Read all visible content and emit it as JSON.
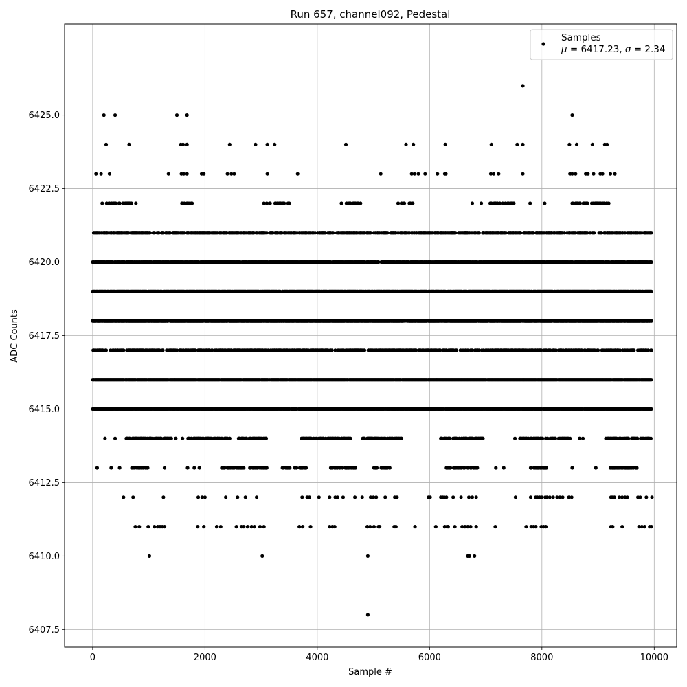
{
  "chart_data": {
    "type": "scatter",
    "title": "Run 657, channel092, Pedestal",
    "xlabel": "Sample #",
    "ylabel": "ADC Counts",
    "xlim": [
      -500,
      10400
    ],
    "ylim": [
      6406.9,
      6428.1
    ],
    "xticks": [
      0,
      2000,
      4000,
      6000,
      8000,
      10000
    ],
    "xtick_labels": [
      "0",
      "2000",
      "4000",
      "6000",
      "8000",
      "10000"
    ],
    "yticks": [
      6407.5,
      6410.0,
      6412.5,
      6415.0,
      6417.5,
      6420.0,
      6422.5,
      6425.0
    ],
    "ytick_labels": [
      "6407.5",
      "6410.0",
      "6412.5",
      "6415.0",
      "6417.5",
      "6420.0",
      "6422.5",
      "6425.0"
    ],
    "grid": true,
    "legend_position": "top-right",
    "series": [
      {
        "name": "Samples",
        "annotation": "μ = 6417.23, σ = 2.34",
        "color": "#000000",
        "points": [
          [
            4900,
            6408
          ],
          [
            1010,
            6410
          ],
          [
            3020,
            6410
          ],
          [
            4900,
            6410
          ],
          [
            6680,
            6410
          ],
          [
            6710,
            6410
          ],
          [
            6800,
            6410
          ],
          [
            7660,
            6426
          ],
          [
            200,
            6425
          ],
          [
            400,
            6425
          ],
          [
            1500,
            6425
          ],
          [
            1680,
            6425
          ],
          [
            8540,
            6425
          ],
          [
            240,
            6424
          ],
          [
            650,
            6424
          ],
          [
            1570,
            6424
          ],
          [
            1610,
            6424
          ],
          [
            1680,
            6424
          ],
          [
            2440,
            6424
          ],
          [
            2900,
            6424
          ],
          [
            3110,
            6424
          ],
          [
            3240,
            6424
          ],
          [
            4510,
            6424
          ],
          [
            5580,
            6424
          ],
          [
            5710,
            6424
          ],
          [
            6280,
            6424
          ],
          [
            7100,
            6424
          ],
          [
            7560,
            6424
          ],
          [
            7660,
            6424
          ],
          [
            8490,
            6424
          ],
          [
            8620,
            6424
          ],
          [
            8900,
            6424
          ],
          [
            9120,
            6424
          ],
          [
            9160,
            6424
          ],
          [
            60,
            6423
          ],
          [
            150,
            6423
          ],
          [
            300,
            6423
          ],
          [
            1350,
            6423
          ],
          [
            1580,
            6423
          ],
          [
            1620,
            6423
          ],
          [
            1680,
            6423
          ],
          [
            1940,
            6423
          ],
          [
            1980,
            6423
          ],
          [
            2400,
            6423
          ],
          [
            2470,
            6423
          ],
          [
            2520,
            6423
          ],
          [
            3110,
            6423
          ],
          [
            3650,
            6423
          ],
          [
            5130,
            6423
          ],
          [
            5680,
            6423
          ],
          [
            5730,
            6423
          ],
          [
            5800,
            6423
          ],
          [
            5920,
            6423
          ],
          [
            6140,
            6423
          ],
          [
            6270,
            6423
          ],
          [
            6290,
            6423
          ],
          [
            7090,
            6423
          ],
          [
            7140,
            6423
          ],
          [
            7230,
            6423
          ],
          [
            7660,
            6423
          ],
          [
            8500,
            6423
          ],
          [
            8540,
            6423
          ],
          [
            8600,
            6423
          ],
          [
            8780,
            6423
          ],
          [
            8820,
            6423
          ],
          [
            8920,
            6423
          ],
          [
            9040,
            6423
          ],
          [
            9080,
            6423
          ],
          [
            9220,
            6423
          ],
          [
            9300,
            6423
          ],
          [
            5250,
            6420
          ],
          [
            6450,
            6420
          ],
          [
            6850,
            6420
          ],
          [
            8270,
            6420
          ],
          [
            9760,
            6420
          ],
          [
            6400,
            6421
          ],
          [
            6640,
            6421
          ],
          [
            6760,
            6422
          ],
          [
            6920,
            6422
          ],
          [
            7080,
            6422
          ],
          [
            7180,
            6422
          ],
          [
            7790,
            6422
          ],
          [
            8050,
            6422
          ],
          [
            6950,
            6421
          ],
          [
            7360,
            6421
          ],
          [
            7900,
            6421
          ],
          [
            8170,
            6421
          ],
          [
            8320,
            6421
          ],
          [
            7290,
            6420
          ],
          [
            8140,
            6420
          ],
          [
            80,
            6413
          ],
          [
            330,
            6413
          ],
          [
            480,
            6413
          ],
          [
            1280,
            6413
          ],
          [
            1690,
            6413
          ],
          [
            1810,
            6413
          ],
          [
            1900,
            6413
          ],
          [
            3380,
            6413
          ],
          [
            6810,
            6413
          ],
          [
            7180,
            6413
          ],
          [
            7320,
            6413
          ],
          [
            8960,
            6413
          ],
          [
            8540,
            6413
          ],
          [
            220,
            6414
          ],
          [
            400,
            6414
          ],
          [
            1480,
            6414
          ],
          [
            1600,
            6414
          ],
          [
            2440,
            6414
          ],
          [
            3060,
            6414
          ],
          [
            4820,
            6414
          ],
          [
            5440,
            6414
          ],
          [
            7520,
            6414
          ],
          [
            8670,
            6414
          ],
          [
            8730,
            6414
          ],
          [
            9380,
            6414
          ],
          [
            550,
            6412
          ],
          [
            720,
            6412
          ],
          [
            1260,
            6412
          ],
          [
            1880,
            6412
          ],
          [
            1950,
            6412
          ],
          [
            2000,
            6412
          ],
          [
            2370,
            6412
          ],
          [
            2580,
            6412
          ],
          [
            2720,
            6412
          ],
          [
            2920,
            6412
          ],
          [
            3730,
            6412
          ],
          [
            3820,
            6412
          ],
          [
            3860,
            6412
          ],
          [
            4030,
            6412
          ],
          [
            4220,
            6412
          ],
          [
            4320,
            6412
          ],
          [
            4360,
            6412
          ],
          [
            4460,
            6412
          ],
          [
            4670,
            6412
          ],
          [
            4800,
            6412
          ],
          [
            4950,
            6412
          ],
          [
            5000,
            6412
          ],
          [
            5050,
            6412
          ],
          [
            5210,
            6412
          ],
          [
            5380,
            6412
          ],
          [
            5420,
            6412
          ],
          [
            5980,
            6412
          ],
          [
            6010,
            6412
          ],
          [
            6200,
            6412
          ],
          [
            6230,
            6412
          ],
          [
            6260,
            6412
          ],
          [
            6300,
            6412
          ],
          [
            6420,
            6412
          ],
          [
            6560,
            6412
          ],
          [
            6700,
            6412
          ],
          [
            6760,
            6412
          ],
          [
            6830,
            6412
          ],
          [
            7530,
            6412
          ],
          [
            7800,
            6412
          ],
          [
            7890,
            6412
          ],
          [
            7920,
            6412
          ],
          [
            7960,
            6412
          ],
          [
            8000,
            6412
          ],
          [
            8060,
            6412
          ],
          [
            8090,
            6412
          ],
          [
            8140,
            6412
          ],
          [
            8200,
            6412
          ],
          [
            8270,
            6412
          ],
          [
            8320,
            6412
          ],
          [
            8370,
            6412
          ],
          [
            8480,
            6412
          ],
          [
            8530,
            6412
          ],
          [
            9230,
            6412
          ],
          [
            9250,
            6412
          ],
          [
            9290,
            6412
          ],
          [
            9380,
            6412
          ],
          [
            9430,
            6412
          ],
          [
            9480,
            6412
          ],
          [
            9520,
            6412
          ],
          [
            9710,
            6412
          ],
          [
            9750,
            6412
          ],
          [
            9860,
            6412
          ],
          [
            9960,
            6412
          ],
          [
            760,
            6411
          ],
          [
            830,
            6411
          ],
          [
            990,
            6411
          ],
          [
            1100,
            6411
          ],
          [
            1160,
            6411
          ],
          [
            1200,
            6411
          ],
          [
            1240,
            6411
          ],
          [
            1280,
            6411
          ],
          [
            1870,
            6411
          ],
          [
            1980,
            6411
          ],
          [
            2210,
            6411
          ],
          [
            2280,
            6411
          ],
          [
            2560,
            6411
          ],
          [
            2650,
            6411
          ],
          [
            2690,
            6411
          ],
          [
            2760,
            6411
          ],
          [
            2830,
            6411
          ],
          [
            2880,
            6411
          ],
          [
            2980,
            6411
          ],
          [
            3050,
            6411
          ],
          [
            3680,
            6411
          ],
          [
            3740,
            6411
          ],
          [
            3880,
            6411
          ],
          [
            4220,
            6411
          ],
          [
            4270,
            6411
          ],
          [
            4310,
            6411
          ],
          [
            4890,
            6411
          ],
          [
            4940,
            6411
          ],
          [
            5010,
            6411
          ],
          [
            5090,
            6411
          ],
          [
            5110,
            6411
          ],
          [
            5370,
            6411
          ],
          [
            5400,
            6411
          ],
          [
            5740,
            6411
          ],
          [
            6110,
            6411
          ],
          [
            6270,
            6411
          ],
          [
            6310,
            6411
          ],
          [
            6330,
            6411
          ],
          [
            6450,
            6411
          ],
          [
            6580,
            6411
          ],
          [
            6630,
            6411
          ],
          [
            6680,
            6411
          ],
          [
            6730,
            6411
          ],
          [
            6830,
            6411
          ],
          [
            7170,
            6411
          ],
          [
            7720,
            6411
          ],
          [
            7810,
            6411
          ],
          [
            7850,
            6411
          ],
          [
            7890,
            6411
          ],
          [
            7990,
            6411
          ],
          [
            8030,
            6411
          ],
          [
            8070,
            6411
          ],
          [
            9230,
            6411
          ],
          [
            9260,
            6411
          ],
          [
            9430,
            6411
          ],
          [
            9730,
            6411
          ],
          [
            9780,
            6411
          ],
          [
            9830,
            6411
          ],
          [
            9920,
            6411
          ],
          [
            9950,
            6411
          ]
        ],
        "dense_bands": [
          {
            "y": 6422,
            "x_ranges": [
              [
                100,
                800
              ],
              [
                1500,
                1780
              ],
              [
                3050,
                3500
              ],
              [
                4400,
                4800
              ],
              [
                5400,
                5700
              ],
              [
                7100,
                7500
              ],
              [
                8450,
                9250
              ]
            ],
            "density": 0.35
          },
          {
            "y": 6421,
            "x_ranges": [
              [
                0,
                9950
              ]
            ],
            "density": 0.55
          },
          {
            "y": 6420,
            "x_ranges": [
              [
                0,
                9950
              ]
            ],
            "density": 0.9
          },
          {
            "y": 6419,
            "x_ranges": [
              [
                0,
                9950
              ]
            ],
            "density": 0.85
          },
          {
            "y": 6418,
            "x_ranges": [
              [
                0,
                9950
              ]
            ],
            "density": 0.9
          },
          {
            "y": 6417,
            "x_ranges": [
              [
                0,
                9950
              ]
            ],
            "density": 0.55
          },
          {
            "y": 6416,
            "x_ranges": [
              [
                0,
                9950
              ]
            ],
            "density": 0.97
          },
          {
            "y": 6415,
            "x_ranges": [
              [
                0,
                9950
              ]
            ],
            "density": 0.92
          },
          {
            "y": 6414,
            "x_ranges": [
              [
                600,
                1400
              ],
              [
                1700,
                2400
              ],
              [
                2600,
                3100
              ],
              [
                3700,
                4600
              ],
              [
                4800,
                5500
              ],
              [
                6200,
                6950
              ],
              [
                7600,
                8500
              ],
              [
                9100,
                9950
              ]
            ],
            "density": 0.55
          },
          {
            "y": 6413,
            "x_ranges": [
              [
                700,
                1000
              ],
              [
                2300,
                2700
              ],
              [
                2800,
                3100
              ],
              [
                3400,
                3800
              ],
              [
                4200,
                4700
              ],
              [
                5000,
                5300
              ],
              [
                6300,
                6900
              ],
              [
                7800,
                8100
              ],
              [
                9220,
                9700
              ]
            ],
            "density": 0.45
          }
        ]
      }
    ]
  }
}
